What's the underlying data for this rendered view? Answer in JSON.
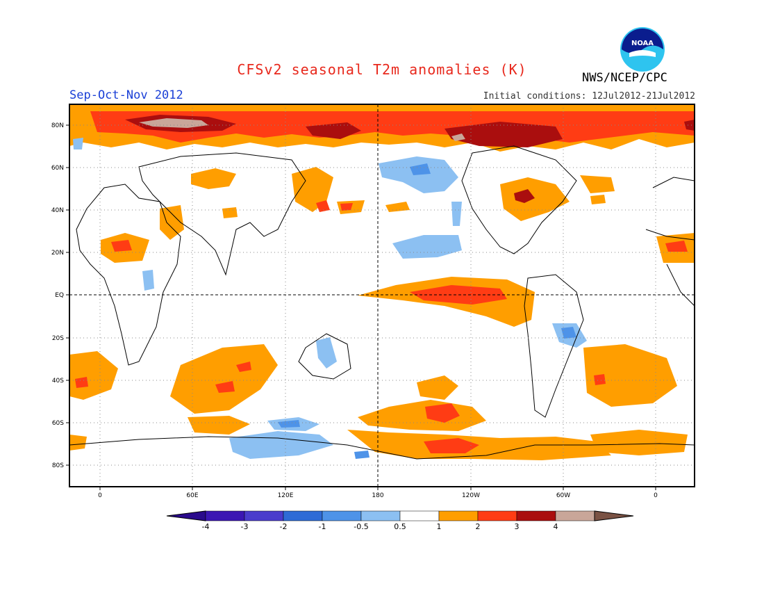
{
  "title": "CFSv2 seasonal T2m anomalies (K)",
  "period": "Sep-Oct-Nov 2012",
  "initial_conditions": "Initial conditions: 12Jul2012-21Jul2012",
  "agency": "NWS/NCEP/CPC",
  "logo_text": "NOAA",
  "latitude_labels": [
    "80N",
    "60N",
    "40N",
    "20N",
    "EQ",
    "20S",
    "40S",
    "60S",
    "80S"
  ],
  "longitude_labels": [
    "0",
    "60E",
    "120E",
    "180",
    "120W",
    "60W",
    "0"
  ],
  "colorbar": {
    "ticks": [
      "-4",
      "-3",
      "-2",
      "-1",
      "-0.5",
      "0.5",
      "1",
      "2",
      "3",
      "4"
    ],
    "colors": [
      "#3b16b3",
      "#4a3ccc",
      "#2e6bd6",
      "#4e93e8",
      "#8cc0f2",
      "#ffffff",
      "#ff9e00",
      "#ff3c14",
      "#aa0e0e",
      "#c9a699"
    ],
    "low_arrow_color": "#2a0a8c",
    "high_arrow_color": "#7a5244"
  },
  "colors": {
    "warm_weak": "#ff9e00",
    "warm_mid": "#ff3c14",
    "warm_strong": "#aa0e0e",
    "warm_extreme": "#c9a699",
    "cool_weak": "#8cc0f2",
    "cool_mid": "#4e93e8"
  }
}
